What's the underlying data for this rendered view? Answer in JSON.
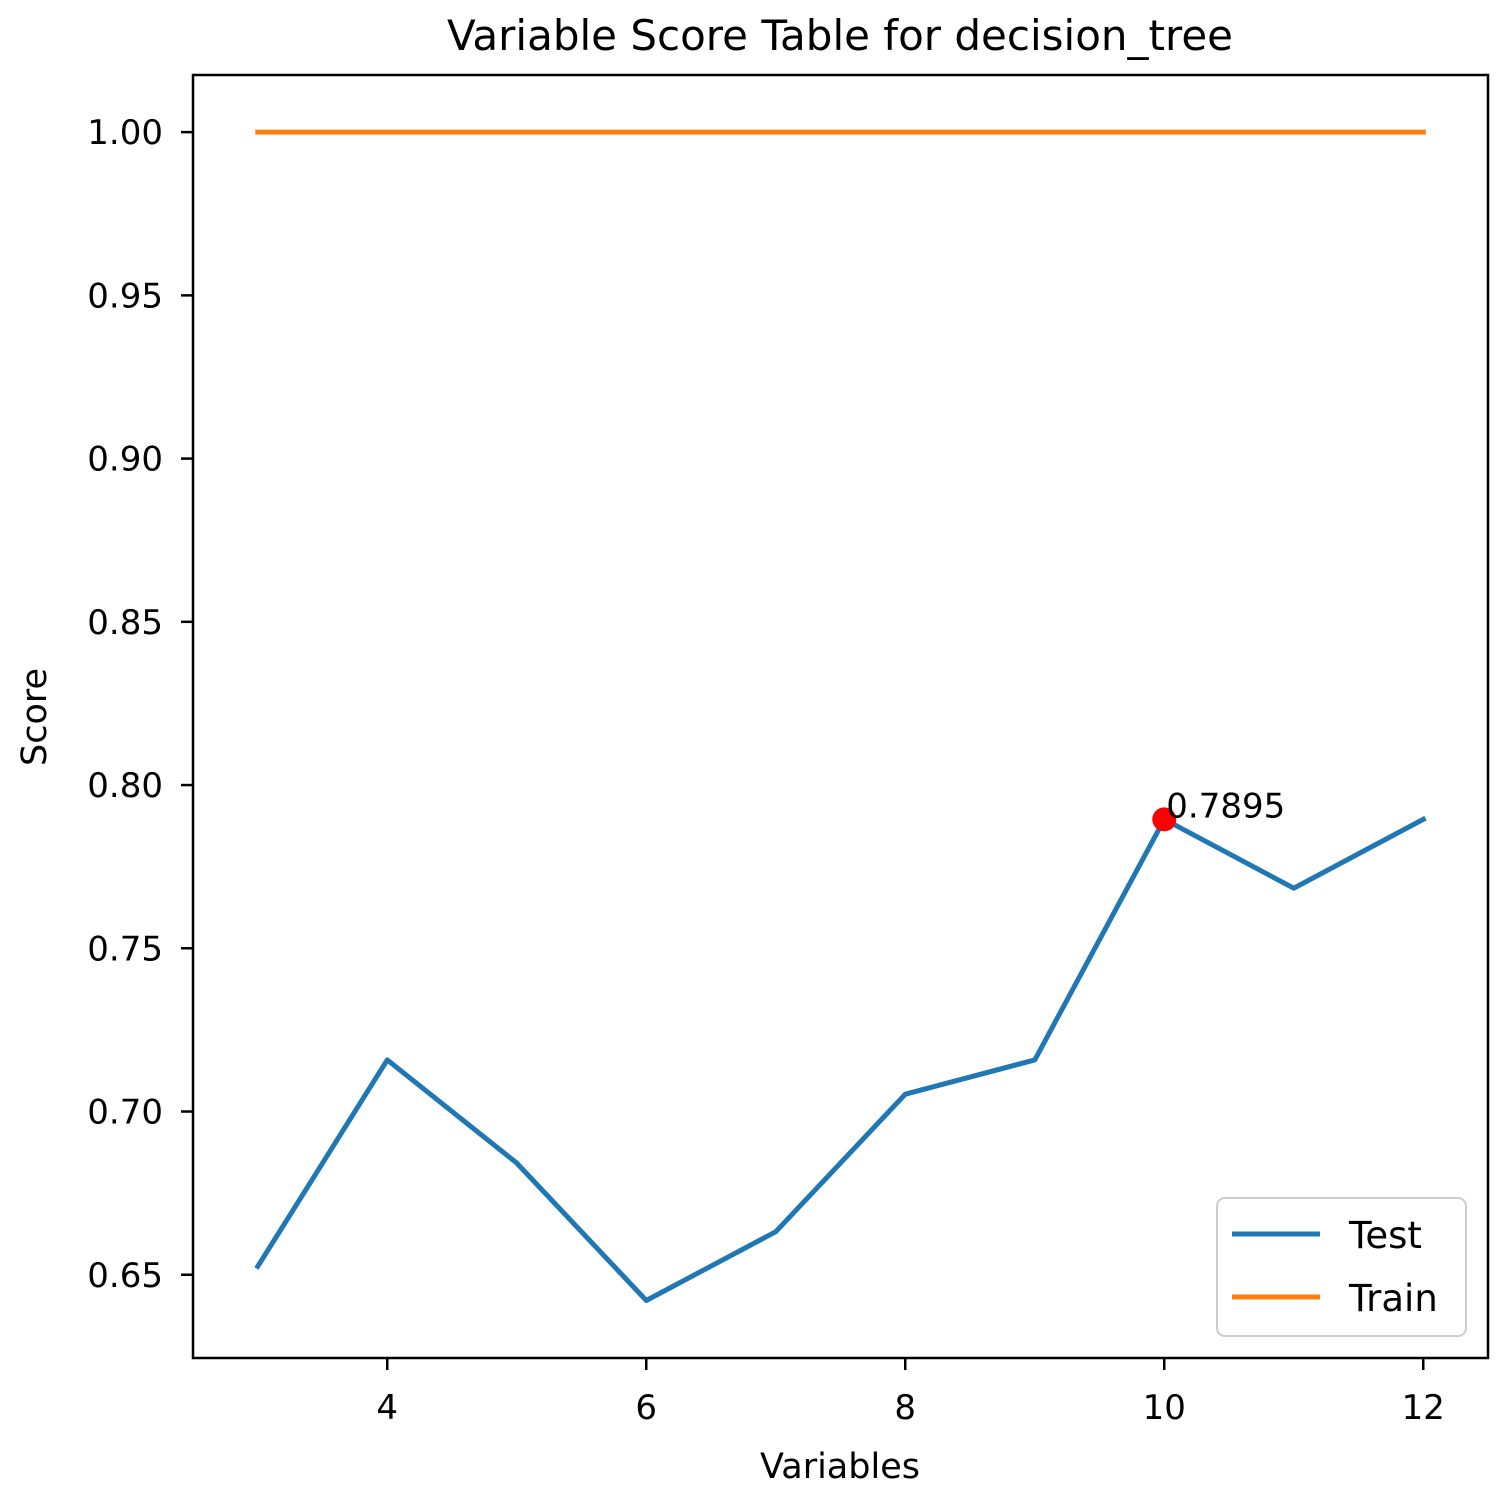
{
  "chart_data": {
    "type": "line",
    "title": "Variable Score Table for decision_tree",
    "xlabel": "Variables",
    "ylabel": "Score",
    "xlim": [
      2.5,
      12.5
    ],
    "ylim": [
      0.6245,
      1.0175
    ],
    "xticks": [
      4,
      6,
      8,
      10,
      12
    ],
    "xtick_labels": [
      "4",
      "6",
      "8",
      "10",
      "12"
    ],
    "yticks": [
      0.65,
      0.7,
      0.75,
      0.8,
      0.85,
      0.9,
      0.95,
      1.0
    ],
    "ytick_labels": [
      "0.65",
      "0.70",
      "0.75",
      "0.80",
      "0.85",
      "0.90",
      "0.95",
      "1.00"
    ],
    "grid": false,
    "legend_position": "lower-right",
    "series": [
      {
        "name": "Test",
        "color": "#1f77b4",
        "x": [
          3,
          4,
          5,
          6,
          7,
          8,
          9,
          10,
          11,
          12
        ],
        "y": [
          0.6526,
          0.7158,
          0.6842,
          0.6421,
          0.6632,
          0.7053,
          0.7158,
          0.7895,
          0.7684,
          0.7895
        ]
      },
      {
        "name": "Train",
        "color": "#ff7f0e",
        "x": [
          3,
          4,
          5,
          6,
          7,
          8,
          9,
          10,
          11,
          12
        ],
        "y": [
          1.0,
          1.0,
          1.0,
          1.0,
          1.0,
          1.0,
          1.0,
          1.0,
          1.0,
          1.0
        ]
      }
    ],
    "highlight": {
      "x": 10,
      "y": 0.7895,
      "label": "0.7895",
      "color": "#ff0000"
    }
  }
}
